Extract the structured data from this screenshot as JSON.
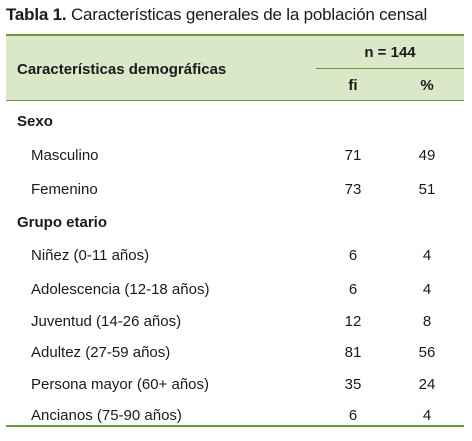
{
  "caption": {
    "prefix": "Tabla 1.",
    "text": " Características generales de la población censal"
  },
  "header": {
    "characteristics": "Características demográficas",
    "n": "n = 144",
    "fi": "fi",
    "pct": "%"
  },
  "groups": [
    {
      "label": "Sexo",
      "rows": [
        {
          "label": "Masculino",
          "fi": "71",
          "pct": "49"
        },
        {
          "label": "Femenino",
          "fi": "73",
          "pct": "51"
        }
      ]
    },
    {
      "label": "Grupo etario",
      "rows": [
        {
          "label": "Niñez (0-11 años)",
          "fi": "6",
          "pct": "4"
        },
        {
          "label": "Adolescencia (12-18 años)",
          "fi": "6",
          "pct": "4"
        },
        {
          "label": "Juventud (14-26 años)",
          "fi": "12",
          "pct": "8"
        },
        {
          "label": "Adultez (27-59 años)",
          "fi": "81",
          "pct": "56"
        },
        {
          "label": "Persona mayor (60+ años)",
          "fi": "35",
          "pct": "24"
        },
        {
          "label": "Ancianos (75-90 años)",
          "fi": "6",
          "pct": "4"
        }
      ]
    }
  ]
}
